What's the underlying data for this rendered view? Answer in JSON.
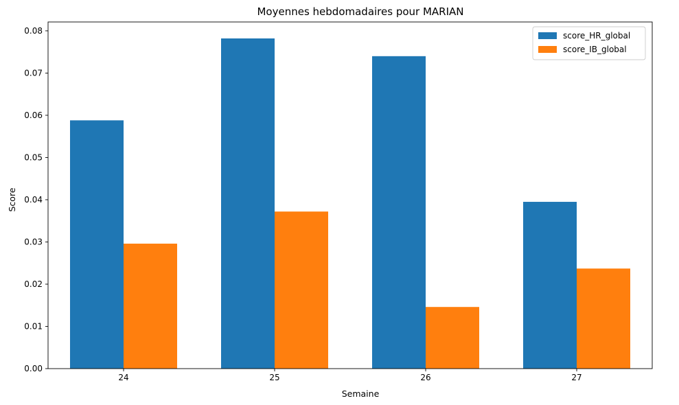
{
  "chart_data": {
    "type": "bar",
    "title": "Moyennes hebdomadaires pour MARIAN",
    "xlabel": "Semaine",
    "ylabel": "Score",
    "categories": [
      "24",
      "25",
      "26",
      "27"
    ],
    "series": [
      {
        "name": "score_HR_global",
        "color": "#1f77b4",
        "values": [
          0.0588,
          0.0782,
          0.074,
          0.0395
        ]
      },
      {
        "name": "score_IB_global",
        "color": "#ff7f0e",
        "values": [
          0.0296,
          0.0372,
          0.0146,
          0.0237
        ]
      }
    ],
    "ylim": [
      0,
      0.0821
    ],
    "yticks": [
      "0.00",
      "0.01",
      "0.02",
      "0.03",
      "0.04",
      "0.05",
      "0.06",
      "0.07",
      "0.08"
    ],
    "grid": false,
    "legend_position": "top-right"
  }
}
